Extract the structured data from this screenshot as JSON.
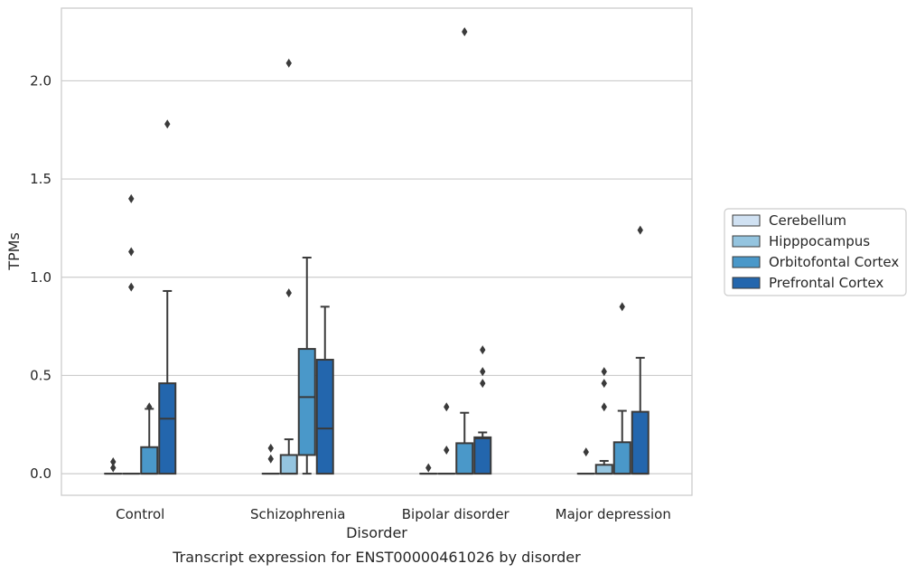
{
  "chart_data": {
    "type": "boxplot",
    "caption": "Transcript expression for ENST00000461026 by disorder",
    "xlabel": "Disorder",
    "ylabel": "TPMs",
    "ylim": [
      -0.11,
      2.37
    ],
    "yticks": [
      {
        "value": 0.0,
        "label": "0.0"
      },
      {
        "value": 0.5,
        "label": "0.5"
      },
      {
        "value": 1.0,
        "label": "1.0"
      },
      {
        "value": 1.5,
        "label": "1.5"
      },
      {
        "value": 2.0,
        "label": "2.0"
      }
    ],
    "grid": "horizontal",
    "legend_position": "right",
    "categories": [
      "Control",
      "Schizophrenia",
      "Bipolar disorder",
      "Major depression"
    ],
    "series": [
      {
        "name": "Cerebellum",
        "color": "#d0e1f2",
        "boxes": [
          {
            "whislo": 0,
            "q1": 0,
            "med": 0,
            "q3": 0,
            "whishi": 0,
            "fliers": [
              0.03,
              0.06
            ]
          },
          {
            "whislo": 0,
            "q1": 0,
            "med": 0,
            "q3": 0,
            "whishi": 0,
            "fliers": [
              0.075,
              0.13
            ]
          },
          {
            "whislo": 0,
            "q1": 0,
            "med": 0,
            "q3": 0,
            "whishi": 0,
            "fliers": [
              0.03
            ]
          },
          {
            "whislo": 0,
            "q1": 0,
            "med": 0,
            "q3": 0,
            "whishi": 0,
            "fliers": [
              0.11
            ]
          }
        ]
      },
      {
        "name": "Hipppocampus",
        "color": "#94c4df",
        "boxes": [
          {
            "whislo": 0,
            "q1": 0,
            "med": 0,
            "q3": 0,
            "whishi": 0,
            "fliers": [
              0.95,
              1.13,
              1.4
            ]
          },
          {
            "whislo": 0,
            "q1": 0,
            "med": 0,
            "q3": 0.095,
            "whishi": 0.175,
            "fliers": [
              0.92,
              2.09
            ]
          },
          {
            "whislo": 0,
            "q1": 0,
            "med": 0,
            "q3": 0,
            "whishi": 0,
            "fliers": [
              0.12,
              0.34
            ]
          },
          {
            "whislo": 0,
            "q1": 0,
            "med": 0,
            "q3": 0.045,
            "whishi": 0.065,
            "fliers": [
              0.34,
              0.46,
              0.52
            ]
          }
        ]
      },
      {
        "name": "Orbitofontal Cortex",
        "color": "#4a98c9",
        "boxes": [
          {
            "whislo": 0,
            "q1": 0,
            "med": 0,
            "q3": 0.135,
            "whishi": 0.33,
            "fliers": [
              0.34
            ]
          },
          {
            "whislo": 0,
            "q1": 0.095,
            "med": 0.39,
            "q3": 0.635,
            "whishi": 1.1,
            "fliers": []
          },
          {
            "whislo": 0,
            "q1": 0,
            "med": 0,
            "q3": 0.155,
            "whishi": 0.31,
            "fliers": [
              2.25
            ]
          },
          {
            "whislo": 0,
            "q1": 0,
            "med": 0,
            "q3": 0.16,
            "whishi": 0.32,
            "fliers": [
              0.85
            ]
          }
        ]
      },
      {
        "name": "Prefrontal Cortex",
        "color": "#2366ad",
        "boxes": [
          {
            "whislo": 0,
            "q1": 0,
            "med": 0.28,
            "q3": 0.46,
            "whishi": 0.93,
            "fliers": [
              1.78
            ]
          },
          {
            "whislo": 0,
            "q1": 0,
            "med": 0.23,
            "q3": 0.58,
            "whishi": 0.85,
            "fliers": []
          },
          {
            "whislo": 0,
            "q1": 0,
            "med": 0.18,
            "q3": 0.185,
            "whishi": 0.21,
            "fliers": [
              0.46,
              0.52,
              0.63
            ]
          },
          {
            "whislo": 0,
            "q1": 0,
            "med": 0,
            "q3": 0.315,
            "whishi": 0.59,
            "fliers": [
              1.24
            ]
          }
        ]
      }
    ]
  }
}
